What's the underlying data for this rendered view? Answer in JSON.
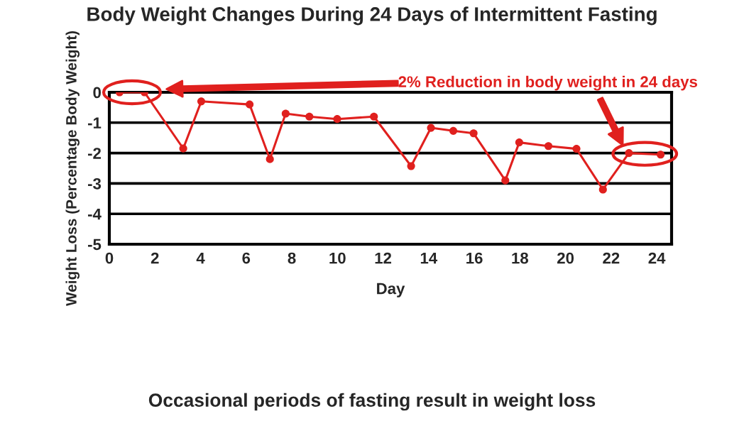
{
  "chart_data": {
    "type": "line",
    "title": "Body Weight Changes During 24 Days of Intermittent Fasting",
    "xlabel": "Day",
    "ylabel": "Weight Loss (Percentage Body Weight)",
    "x": [
      0.45,
      1.54,
      3.24,
      4.03,
      6.15,
      7.04,
      7.73,
      8.77,
      9.99,
      11.6,
      13.23,
      14.1,
      15.08,
      15.97,
      17.36,
      17.97,
      19.25,
      20.48,
      21.64,
      22.78,
      24.17
    ],
    "series": [
      {
        "color": "#e0201e",
        "values": [
          0,
          0,
          -1.85,
          -0.3,
          -0.4,
          -2.2,
          -0.7,
          -0.8,
          -0.88,
          -0.8,
          -2.43,
          -1.17,
          -1.27,
          -1.35,
          -2.9,
          -1.65,
          -1.77,
          -1.86,
          -3.2,
          -2.0,
          -2.05
        ]
      }
    ],
    "xlim": [
      0,
      24.65
    ],
    "ylim": [
      -5,
      0
    ],
    "xticks": [
      0,
      2,
      4,
      6,
      8,
      10,
      12,
      14,
      16,
      18,
      20,
      22,
      24
    ],
    "yticks": [
      -5,
      -4,
      -3,
      -2,
      -1,
      0
    ],
    "grid": "y",
    "marker": "circle",
    "line_style": "solid",
    "annotations": [
      "2% Reduction in body weight in 24 days",
      "Occasional periods of fasting result in weight loss"
    ]
  }
}
